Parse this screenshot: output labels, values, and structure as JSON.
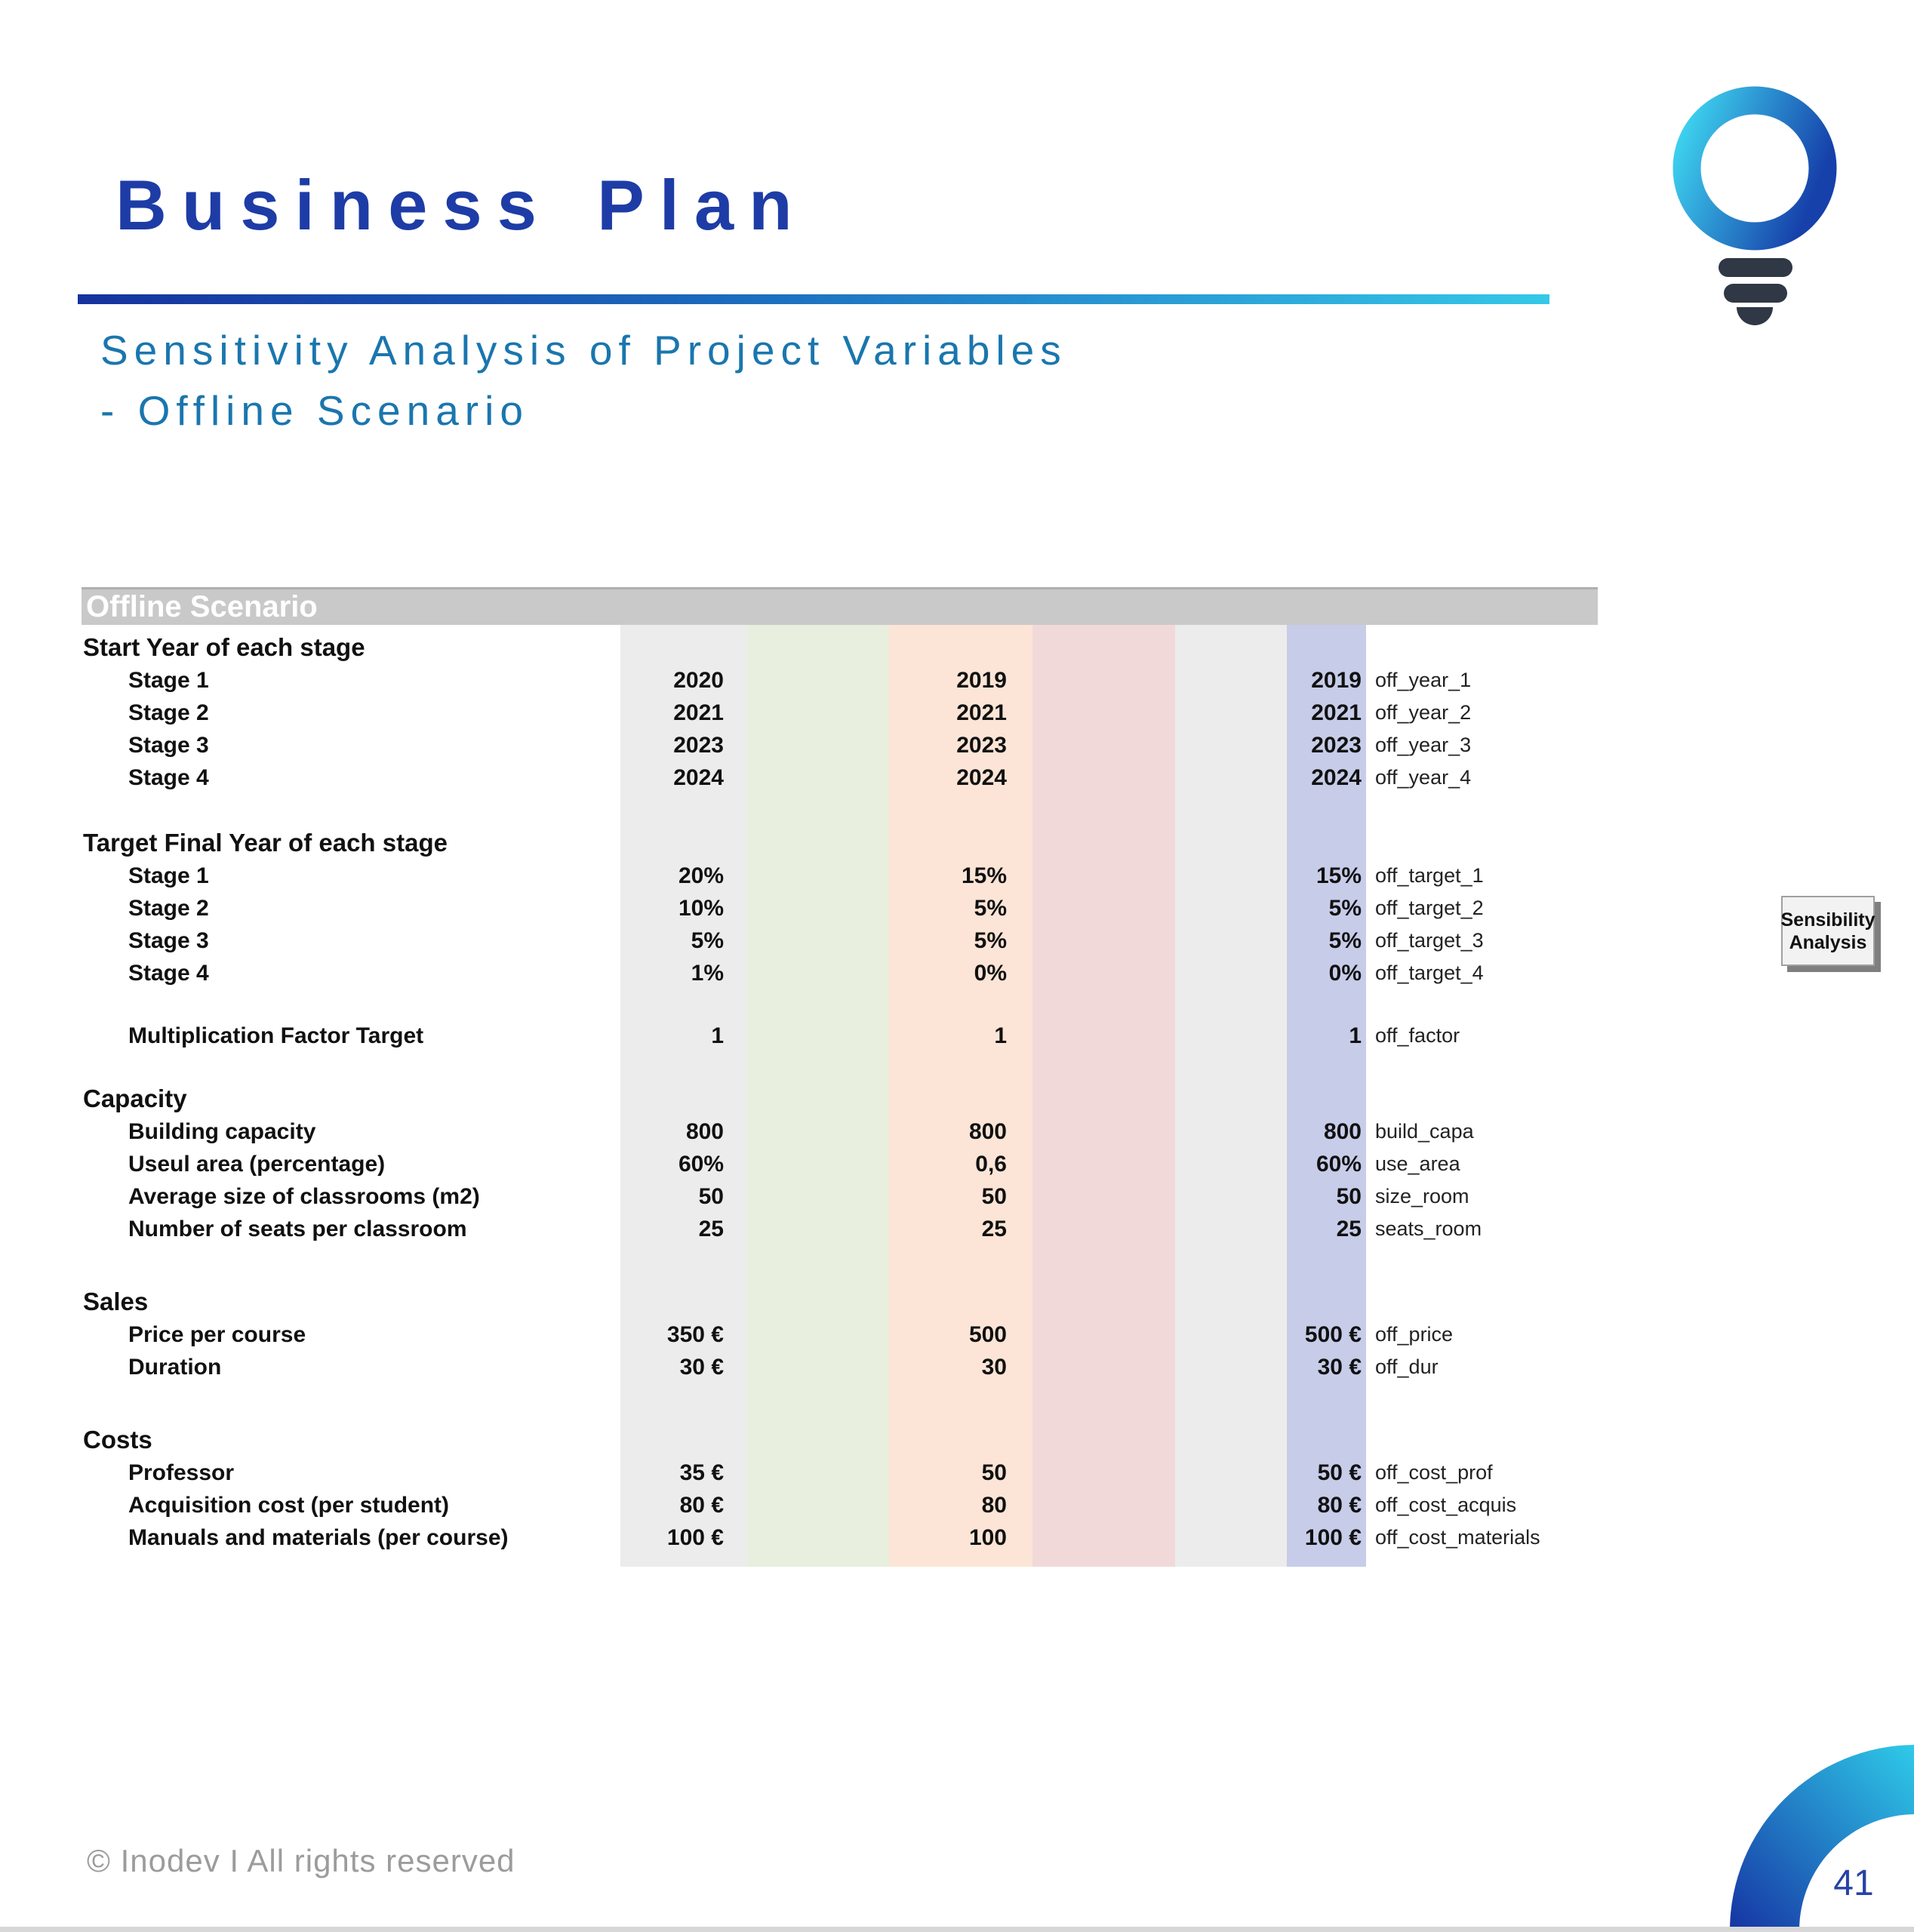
{
  "header": {
    "title": "Business Plan",
    "subtitle_line1": "Sensitivity Analysis of Project Variables",
    "subtitle_line2": "- Offline Scenario",
    "title_color": "#1e3ca6",
    "subtitle_color": "#1a76ae",
    "rule_gradient_start": "#16329e",
    "rule_gradient_end": "#35c8e8"
  },
  "logo": {
    "icon": "lightbulb-icon",
    "ring_gradient_start": "#3dd0ee",
    "ring_gradient_end": "#1640aa",
    "base_color": "#2f3844"
  },
  "table": {
    "header_label": "Offline Scenario",
    "header_bg": "#c9c9c9",
    "bands": [
      {
        "name": "column-1-gray",
        "color": "#ececec"
      },
      {
        "name": "column-2-green",
        "color": "#e8efdf"
      },
      {
        "name": "column-3-peach",
        "color": "#fce5d6"
      },
      {
        "name": "column-4-pink",
        "color": "#f2d9d9"
      },
      {
        "name": "column-5-gray",
        "color": "#ececec"
      },
      {
        "name": "column-6-lavender",
        "color": "#c7cce9"
      }
    ],
    "rows": [
      {
        "type": "section",
        "label": "Start Year of each stage"
      },
      {
        "type": "item",
        "label": "Stage 1",
        "v1": "2020",
        "v3": "2019",
        "v6": "2019",
        "var": "off_year_1"
      },
      {
        "type": "item",
        "label": "Stage 2",
        "v1": "2021",
        "v3": "2021",
        "v6": "2021",
        "var": "off_year_2"
      },
      {
        "type": "item",
        "label": "Stage 3",
        "v1": "2023",
        "v3": "2023",
        "v6": "2023",
        "var": "off_year_3"
      },
      {
        "type": "item",
        "label": "Stage 4",
        "v1": "2024",
        "v3": "2024",
        "v6": "2024",
        "var": "off_year_4"
      },
      {
        "type": "spacer"
      },
      {
        "type": "section",
        "label": "Target Final Year of each stage"
      },
      {
        "type": "item",
        "label": "Stage 1",
        "v1": "20%",
        "v3": "15%",
        "v6": "15%",
        "var": "off_target_1"
      },
      {
        "type": "item",
        "label": "Stage 2",
        "v1": "10%",
        "v3": "5%",
        "v6": "5%",
        "var": "off_target_2"
      },
      {
        "type": "item",
        "label": "Stage 3",
        "v1": "5%",
        "v3": "5%",
        "v6": "5%",
        "var": "off_target_3"
      },
      {
        "type": "item",
        "label": "Stage 4",
        "v1": "1%",
        "v3": "0%",
        "v6": "0%",
        "var": "off_target_4"
      },
      {
        "type": "spacer_sm"
      },
      {
        "type": "item",
        "label": "Multiplication Factor Target",
        "v1": "1",
        "v3": "1",
        "v6": "1",
        "var": "off_factor"
      },
      {
        "type": "spacer_sm"
      },
      {
        "type": "section",
        "label": "Capacity"
      },
      {
        "type": "item",
        "label": "Building capacity",
        "v1": "800",
        "v3": "800",
        "v6": "800",
        "var": "build_capa"
      },
      {
        "type": "item",
        "label": "Useul area (percentage)",
        "v1": "60%",
        "v3": "0,6",
        "v6": "60%",
        "var": "use_area"
      },
      {
        "type": "item",
        "label": "Average size of classrooms (m2)",
        "v1": "50",
        "v3": "50",
        "v6": "50",
        "var": "size_room"
      },
      {
        "type": "item",
        "label": "Number of seats per classroom",
        "v1": "25",
        "v3": "25",
        "v6": "25",
        "var": "seats_room"
      },
      {
        "type": "spacer_lg"
      },
      {
        "type": "section",
        "label": "Sales"
      },
      {
        "type": "item",
        "label": "Price per course",
        "v1": "350 €",
        "v3": "500",
        "v6": "500 €",
        "var": "off_price"
      },
      {
        "type": "item",
        "label": "Duration",
        "v1": "30 €",
        "v3": "30",
        "v6": "30 €",
        "var": "off_dur"
      },
      {
        "type": "spacer_lg"
      },
      {
        "type": "section",
        "label": "Costs"
      },
      {
        "type": "item",
        "label": "Professor",
        "v1": "35 €",
        "v3": "50",
        "v6": "50 €",
        "var": "off_cost_prof"
      },
      {
        "type": "item",
        "label": "Acquisition cost (per student)",
        "v1": "80 €",
        "v3": "80",
        "v6": "80 €",
        "var": "off_cost_acquis"
      },
      {
        "type": "item",
        "label": "Manuals and materials (per course)",
        "v1": "100 €",
        "v3": "100",
        "v6": "100 €",
        "var": "off_cost_materials"
      }
    ]
  },
  "button": {
    "line1": "Sensibility",
    "line2": "Analysis"
  },
  "footer": {
    "copyright": "© Inodev I All rights reserved",
    "page_number": "41",
    "arc_gradient_start": "#1634a3",
    "arc_gradient_end": "#2fcbe9"
  }
}
